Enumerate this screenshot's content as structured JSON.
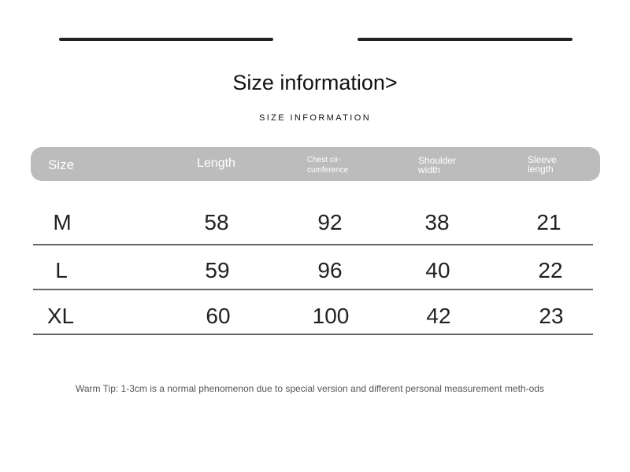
{
  "title": "Size information>",
  "subtitle": "SIZE INFORMATION",
  "headers": [
    "Size",
    "Length",
    "Chest cir-\ncumference",
    "Shoulder\nwidth",
    "Sleeve\nlength"
  ],
  "rows": [
    [
      "M",
      "58",
      "92",
      "38",
      "21"
    ],
    [
      "L",
      "59",
      "96",
      "40",
      "22"
    ],
    [
      "XL",
      "60",
      "100",
      "42",
      "23"
    ]
  ],
  "tip": "Warm Tip: 1-3cm is a normal phenomenon due to special version and different personal measurement meth-ods"
}
